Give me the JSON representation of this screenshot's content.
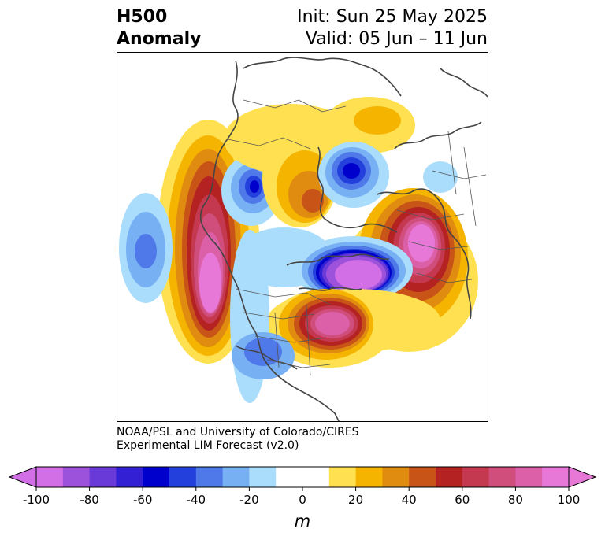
{
  "title": {
    "line1": "H500",
    "line2": "Anomaly"
  },
  "info": {
    "init": "Init: Sun 25 May 2025",
    "valid": "Valid: 05 Jun – 11 Jun"
  },
  "credits": {
    "line1": "NOAA/PSL and University of Colorado/CIRES",
    "line2": "Experimental LIM Forecast (v2.0)"
  },
  "colorbar": {
    "unit": "m",
    "range": [
      -100,
      100
    ],
    "extend": "both",
    "tick_labels": [
      "-100",
      "-80",
      "-60",
      "-40",
      "-20",
      "0",
      "20",
      "40",
      "60",
      "80",
      "100"
    ],
    "colors": [
      "#d26ee6",
      "#9d52dc",
      "#6a3ad9",
      "#3420d4",
      "#0000cc",
      "#2440dc",
      "#4f78e8",
      "#78b0f4",
      "#aadcfc",
      "#ffffff",
      "#ffffff",
      "#ffe050",
      "#f4b400",
      "#e08c10",
      "#c85418",
      "#b42222",
      "#c43850",
      "#d04e7c",
      "#dc60a8",
      "#e878d8"
    ]
  },
  "map": {
    "projection": "polar stereographic",
    "features": [
      {
        "name": "west-pacific-positive",
        "sign": "positive",
        "peak": 90
      },
      {
        "name": "hudson-bay-negative",
        "sign": "negative",
        "peak": -100
      },
      {
        "name": "western-europe-positive",
        "sign": "positive",
        "peak": 90
      },
      {
        "name": "barents-positive",
        "sign": "positive",
        "peak": 100
      },
      {
        "name": "east-asia-negative",
        "sign": "negative",
        "peak": -70
      },
      {
        "name": "kara-negative",
        "sign": "negative",
        "peak": -90
      },
      {
        "name": "north-pacific-negative",
        "sign": "negative",
        "peak": -60
      },
      {
        "name": "western-us-negative",
        "sign": "negative",
        "peak": -50
      }
    ]
  }
}
